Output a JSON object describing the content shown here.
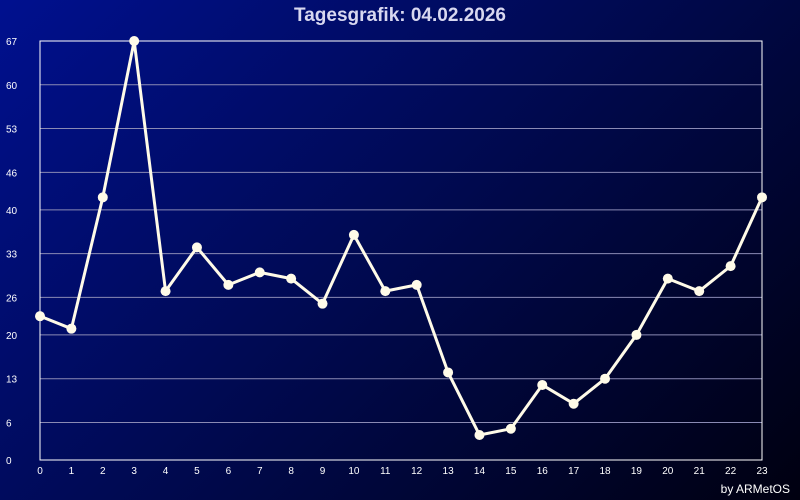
{
  "chart_data": {
    "type": "line",
    "title": "Tagesgrafik: 04.02.2026",
    "xlabel": "",
    "ylabel": "",
    "x": [
      0,
      1,
      2,
      3,
      4,
      5,
      6,
      7,
      8,
      9,
      10,
      11,
      12,
      13,
      14,
      15,
      16,
      17,
      18,
      19,
      20,
      21,
      22,
      23
    ],
    "series": [
      {
        "values": [
          23,
          21,
          42,
          67,
          27,
          34,
          28,
          30,
          29,
          25,
          36,
          27,
          28,
          14,
          4,
          5,
          12,
          9,
          13,
          20,
          29,
          27,
          31,
          42
        ]
      }
    ],
    "yticks": [
      "0",
      "6",
      "13",
      "20",
      "26",
      "33",
      "40",
      "46",
      "53",
      "60",
      "67"
    ],
    "ylim": [
      0,
      67
    ],
    "xlim": [
      0,
      23
    ],
    "grid": true,
    "colors": {
      "line": "#fffbe8",
      "grid": "#8a8ab4",
      "axis": "#ffffff"
    }
  },
  "credit": "by ARMetOS"
}
